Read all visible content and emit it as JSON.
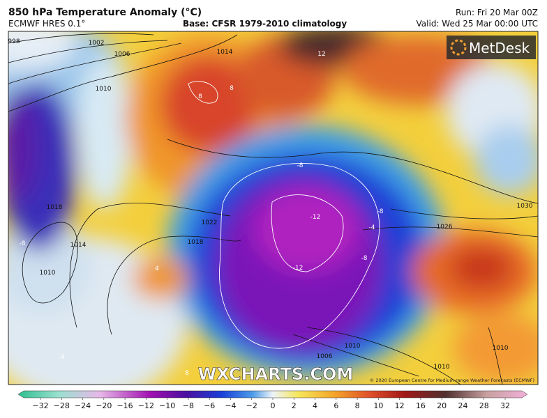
{
  "header": {
    "title": "850 hPa Temperature Anomaly (°C)",
    "model": "ECMWF HRES 0.1°",
    "base": "Base: CFSR 1979-2010 climatology",
    "run": "Run: Fri 20 Mar 00Z",
    "valid": "Valid: Wed 25 Mar 00:00 UTC"
  },
  "logo": "MetDesk",
  "watermark": "WXCHARTS.COM",
  "copyright": "© 2020 European Centre for Medium-range Weather Forecasts (ECMWF)",
  "map": {
    "isobar_labels": [
      "998",
      "1002",
      "1006",
      "1010",
      "1014",
      "1018",
      "1022",
      "1018",
      "1014",
      "1010",
      "1030",
      "1026",
      "1010",
      "1006",
      "1010",
      "1010"
    ],
    "anomaly_labels": [
      "12",
      "8",
      "8",
      "-8",
      "-12",
      "-12",
      "-8",
      "-8",
      "-4",
      "-8",
      "4",
      "-4",
      "8"
    ]
  },
  "colorbar": {
    "labels": [
      "−32",
      "−28",
      "−24",
      "−20",
      "−16",
      "−12",
      "−10",
      "−8",
      "−6",
      "−4",
      "−2",
      "0",
      "2",
      "4",
      "6",
      "8",
      "10",
      "12",
      "16",
      "20",
      "24",
      "28",
      "32"
    ]
  }
}
